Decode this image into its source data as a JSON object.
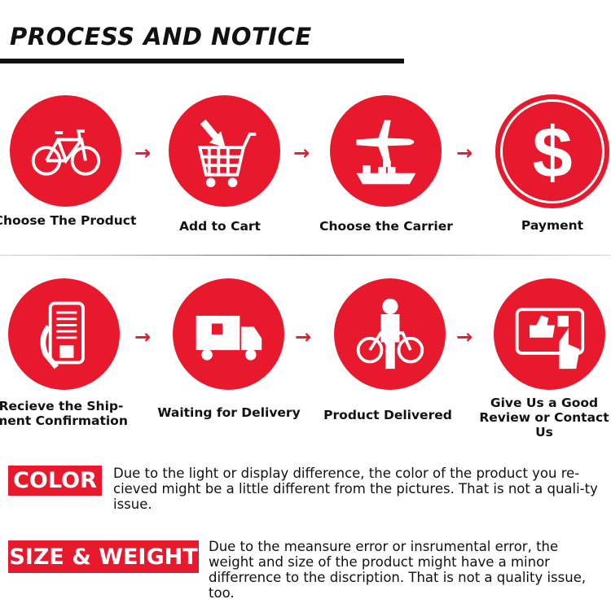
{
  "title": "PROCESS AND NOTICE",
  "accent_color": "#e8192c",
  "steps_row1": [
    {
      "label": "Choose The Product",
      "icon": "bicycle-icon"
    },
    {
      "label": "Add to Cart",
      "icon": "shopping-cart-icon"
    },
    {
      "label": "Choose the Carrier",
      "icon": "plane-ship-icon"
    },
    {
      "label": "Payment",
      "icon": "dollar-icon"
    }
  ],
  "steps_row2": [
    {
      "label": "Recieve the Ship-ment Confirmation",
      "icon": "phone-in-hand-icon"
    },
    {
      "label": "Waiting for Delivery",
      "icon": "delivery-truck-icon"
    },
    {
      "label": "Product Delivered",
      "icon": "person-with-bicycle-icon"
    },
    {
      "label": "Give Us a Good Review or Contact Us",
      "icon": "thumbs-up-tablet-icon"
    }
  ],
  "arrow_glyph": "→",
  "notices": [
    {
      "tag": "COLOR",
      "text": "Due to the light or display difference, the color of the product you re-cieved might be a little different from the pictures. That is not a quali-ty issue."
    },
    {
      "tag": "SIZE & WEIGHT",
      "text": "Due to the meansure error or insrumental error, the weight and size of the product might have a minor differrence to the discription. That is not a quality issue, too."
    }
  ]
}
